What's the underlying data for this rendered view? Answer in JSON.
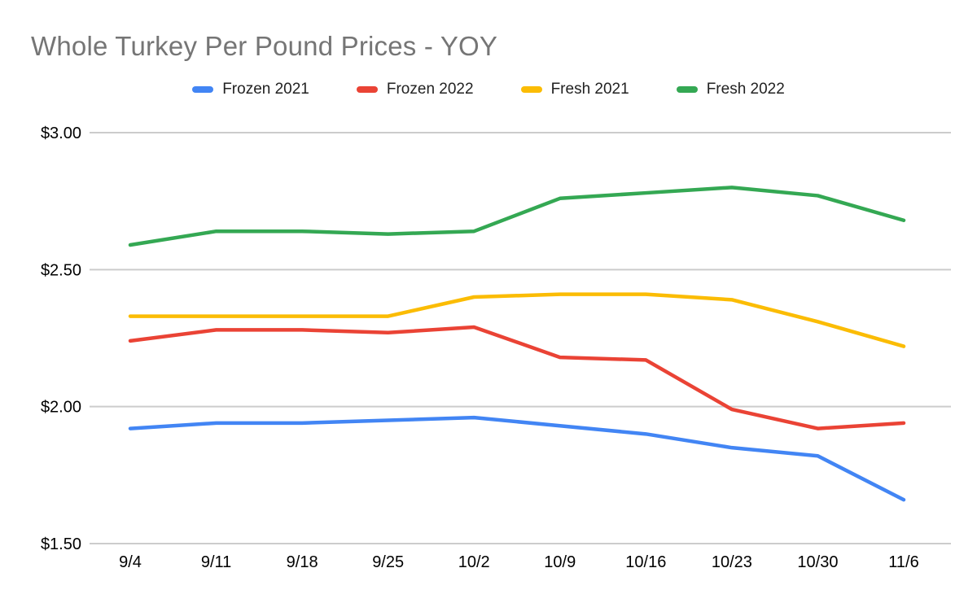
{
  "title": "Whole Turkey Per Pound Prices - YOY",
  "colors": {
    "background": "#ffffff",
    "title_text": "#757575",
    "axis_text": "#000000",
    "gridline": "#cccccc",
    "frozen_2021": "#4285F4",
    "frozen_2022": "#EA4335",
    "fresh_2021": "#FBBC04",
    "fresh_2022": "#34A853"
  },
  "chart_data": {
    "type": "line",
    "title": "Whole Turkey Per Pound Prices - YOY",
    "xlabel": "",
    "ylabel": "",
    "categories": [
      "9/4",
      "9/11",
      "9/18",
      "9/25",
      "10/2",
      "10/9",
      "10/16",
      "10/23",
      "10/30",
      "11/6"
    ],
    "series": [
      {
        "name": "Frozen 2021",
        "color": "#4285F4",
        "values": [
          1.92,
          1.94,
          1.94,
          1.95,
          1.96,
          1.93,
          1.9,
          1.85,
          1.82,
          1.66
        ]
      },
      {
        "name": "Frozen 2022",
        "color": "#EA4335",
        "values": [
          2.24,
          2.28,
          2.28,
          2.27,
          2.29,
          2.18,
          2.17,
          1.99,
          1.92,
          1.94
        ]
      },
      {
        "name": "Fresh 2021",
        "color": "#FBBC04",
        "values": [
          2.33,
          2.33,
          2.33,
          2.33,
          2.4,
          2.41,
          2.41,
          2.39,
          2.31,
          2.22
        ]
      },
      {
        "name": "Fresh 2022",
        "color": "#34A853",
        "values": [
          2.59,
          2.64,
          2.64,
          2.63,
          2.64,
          2.76,
          2.78,
          2.8,
          2.77,
          2.68
        ]
      }
    ],
    "ylim": [
      1.5,
      3.0
    ],
    "y_ticks": [
      {
        "label": "$1.50",
        "value": 1.5
      },
      {
        "label": "$2.00",
        "value": 2.0
      },
      {
        "label": "$2.50",
        "value": 2.5
      },
      {
        "label": "$3.00",
        "value": 3.0
      }
    ],
    "grid": true,
    "legend_position": "top"
  }
}
